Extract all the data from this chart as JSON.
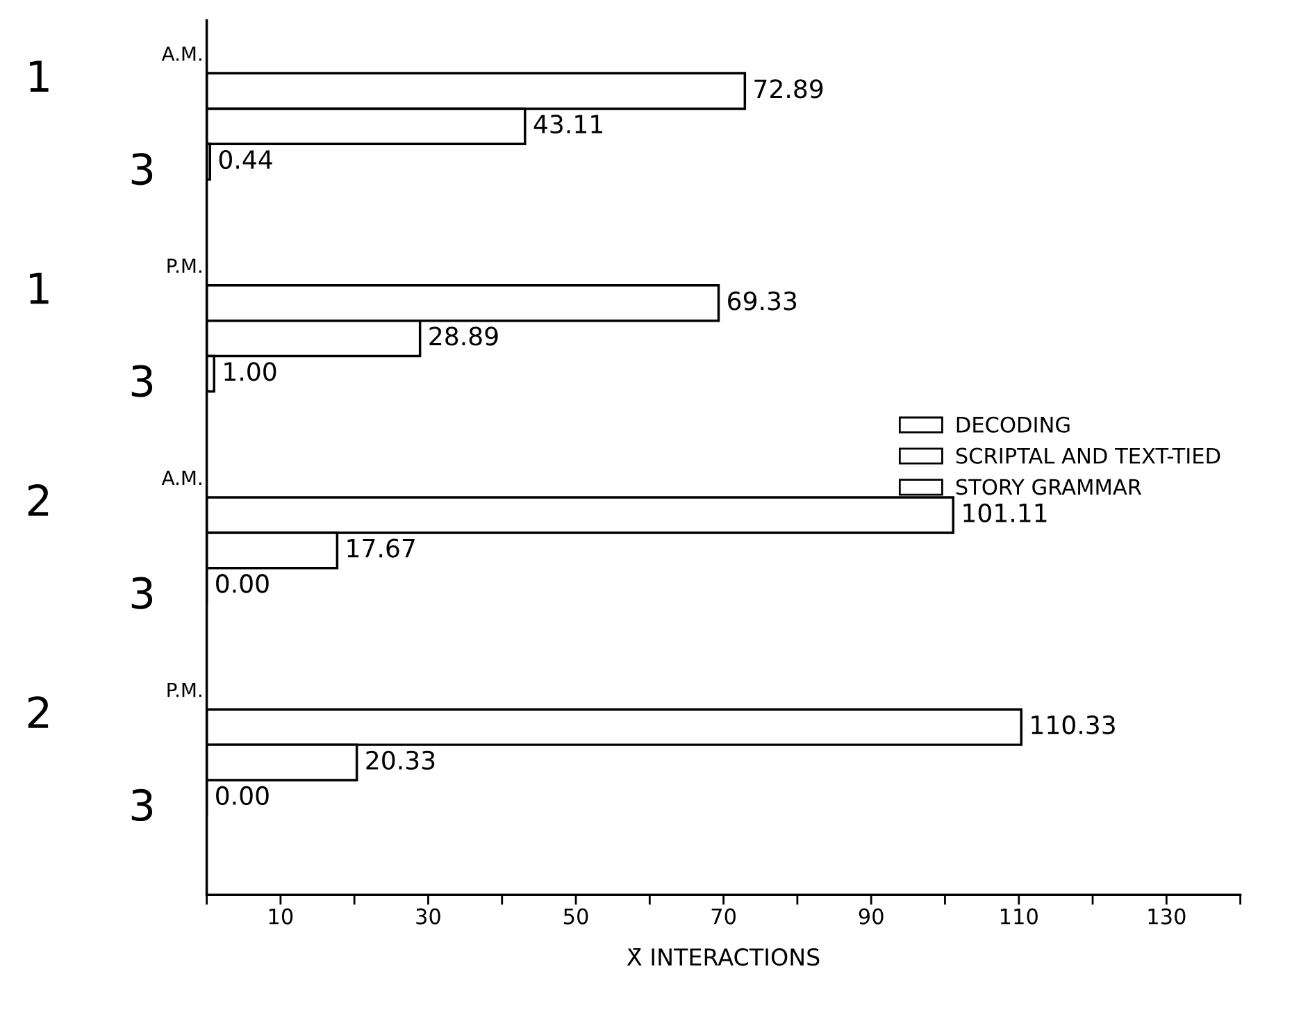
{
  "chart_data": {
    "type": "bar",
    "orientation": "horizontal",
    "categories": [
      "A.M.",
      "P.M.",
      "A.M.",
      "P.M."
    ],
    "series": [
      {
        "name": "DECODING",
        "color": "#ffffff",
        "values": [
          72.89,
          69.33,
          101.11,
          110.33
        ]
      },
      {
        "name": "SCRIPTAL AND TEXT-TIED",
        "color": "#ffffff",
        "values": [
          43.11,
          28.89,
          17.67,
          20.33
        ]
      },
      {
        "name": "STORY GRAMMAR",
        "color": "#ffffff",
        "values": [
          0.44,
          1.0,
          0.0,
          0.0
        ]
      }
    ],
    "value_labels": [
      [
        "72.89",
        "69.33",
        "101.11",
        "110.33"
      ],
      [
        "43.11",
        "28.89",
        "17.67",
        "20.33"
      ],
      [
        "0.44",
        "1.00",
        "0.00",
        "0.00"
      ]
    ],
    "xlabel": "X̄ INTERACTIONS",
    "xlim": [
      0,
      140
    ],
    "xticks": [
      {
        "value": 0,
        "label": null
      },
      10,
      {
        "value": 20,
        "label": null
      },
      30,
      {
        "value": 40,
        "label": null
      },
      50,
      {
        "value": 60,
        "label": null
      },
      70,
      {
        "value": 80,
        "label": null
      },
      90,
      {
        "value": 100,
        "label": null
      },
      110,
      {
        "value": 120,
        "label": null
      },
      130,
      {
        "value": 140,
        "label": null
      }
    ],
    "annotations": [
      "1",
      "3",
      "1",
      "3",
      "2",
      "3",
      "2",
      "3"
    ],
    "legend": "center right",
    "grid": false
  }
}
